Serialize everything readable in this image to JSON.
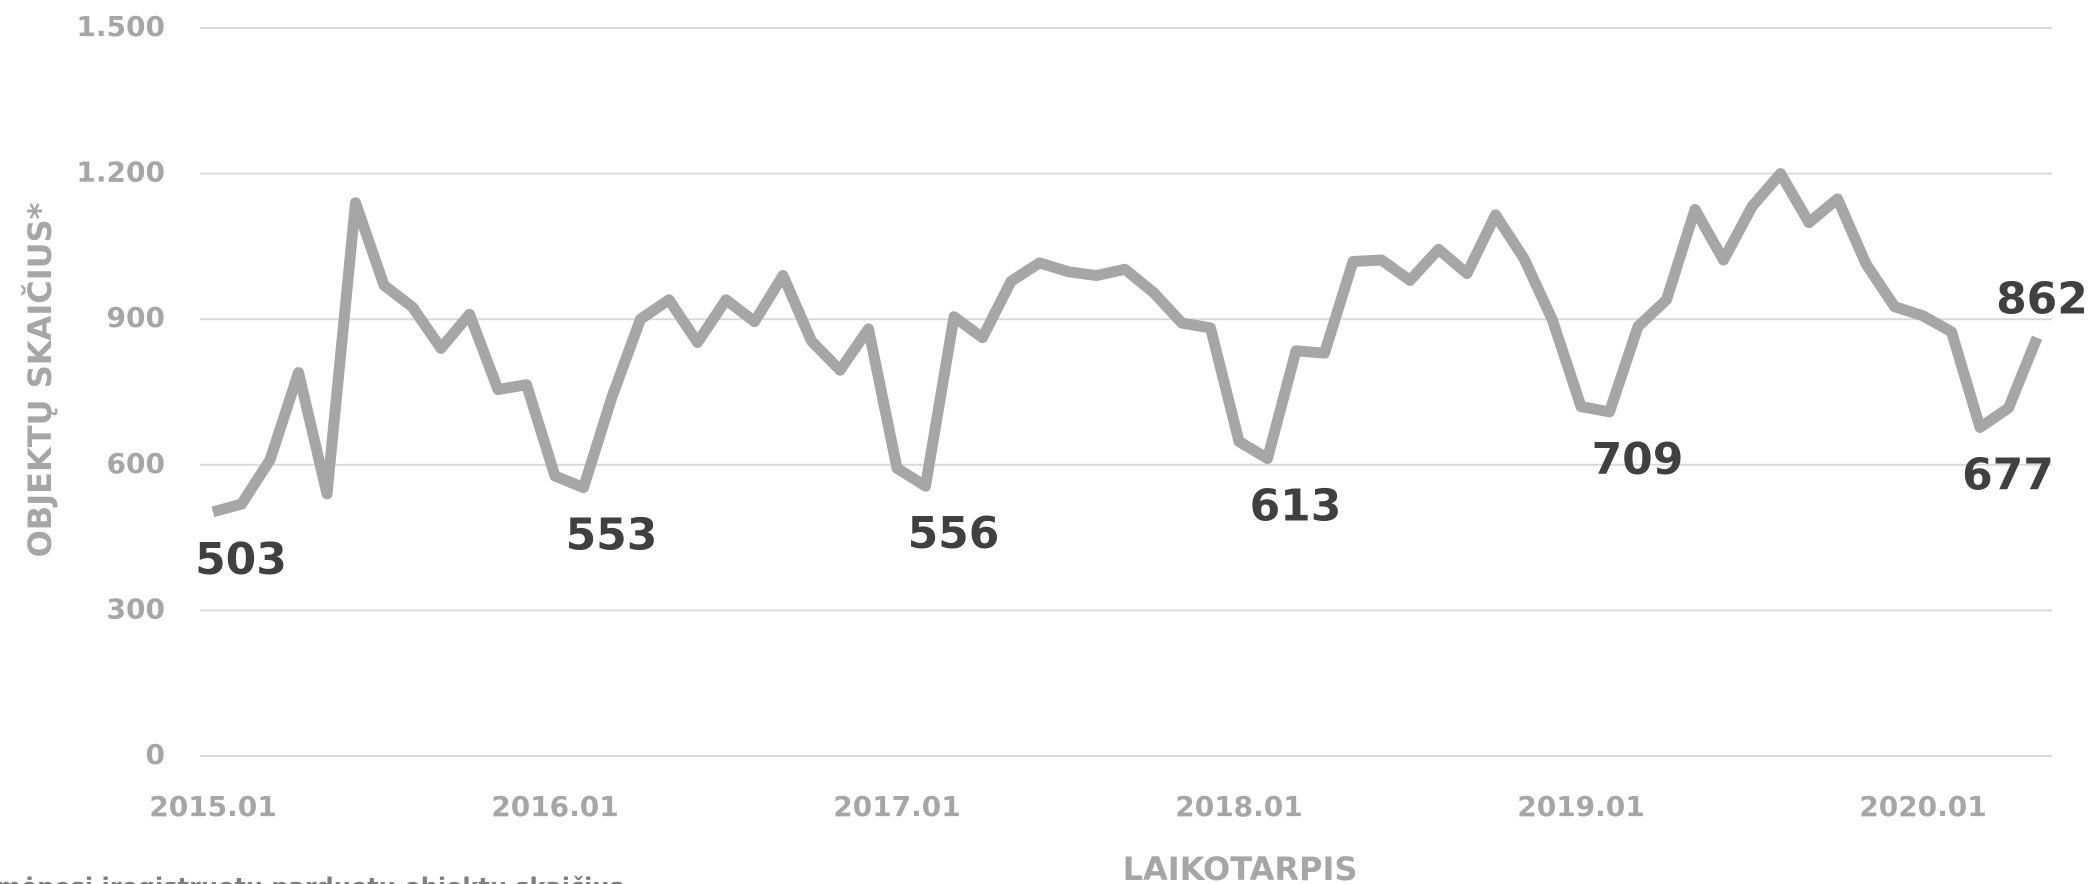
{
  "chart_data": {
    "type": "line",
    "y_label": "OBJEKTŲ SKAIČIUS*",
    "x_label": "LAIKOTARPIS",
    "note": "mėnesį įregistruotų parduotų objektų skaičius",
    "categories": [
      "2015.01",
      null,
      null,
      null,
      null,
      null,
      null,
      null,
      null,
      null,
      null,
      null,
      "2016.01",
      null,
      null,
      null,
      null,
      null,
      null,
      null,
      null,
      null,
      null,
      null,
      "2017.01",
      null,
      null,
      null,
      null,
      null,
      null,
      null,
      null,
      null,
      null,
      null,
      "2018.01",
      null,
      null,
      null,
      null,
      null,
      null,
      null,
      null,
      null,
      null,
      null,
      "2019.01",
      null,
      null,
      null,
      null,
      null,
      null,
      null,
      null,
      null,
      null,
      null,
      "2020.01",
      null,
      null,
      null,
      null
    ],
    "series": [
      {
        "name": "Objektų skaičius",
        "color": "#a6a6a6",
        "values": [
          503,
          519,
          610,
          790,
          540,
          1140,
          970,
          925,
          840,
          910,
          755,
          765,
          577,
          553,
          740,
          900,
          940,
          852,
          940,
          895,
          990,
          855,
          795,
          880,
          593,
          556,
          905,
          862,
          978,
          1016,
          998,
          990,
          1003,
          955,
          892,
          882,
          648,
          613,
          835,
          830,
          1019,
          1022,
          980,
          1044,
          994,
          1115,
          1025,
          898,
          720,
          709,
          885,
          940,
          1126,
          1022,
          1132,
          1200,
          1099,
          1148,
          1014,
          926,
          907,
          874,
          677,
          717,
          862
        ]
      }
    ],
    "labeled_points": [
      0,
      13,
      25,
      37,
      49,
      62,
      64
    ],
    "ylim": [
      0,
      1500
    ],
    "yticks": [
      0,
      300,
      600,
      900,
      {
        "value": 1200,
        "label": "1.200"
      },
      {
        "value": 1500,
        "label": "1.500"
      }
    ],
    "grid": true
  }
}
